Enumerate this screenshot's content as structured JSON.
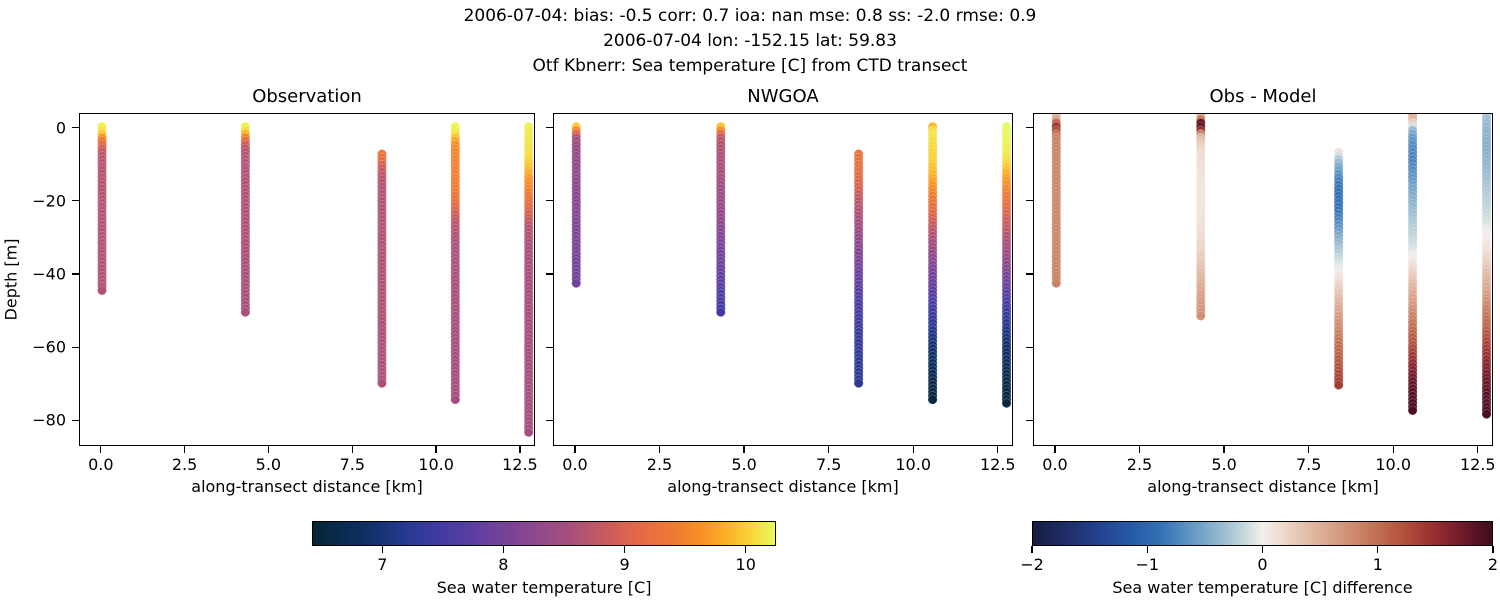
{
  "figure": {
    "title_line1": "2006-07-04: bias: -0.5  corr: 0.7  ioa: nan  mse: 0.8  ss: -2.0  rmse: 0.9",
    "title_line2": "2006-07-04 lon: -152.15 lat: 59.83",
    "title_line3": "Otf Kbnerr: Sea temperature [C] from CTD transect"
  },
  "chart_data": {
    "type": "scatter",
    "description": "Three vertical-profile scatter panels of sea temperature vs depth along a CTD transect; color encodes temperature (panels 1-2) or obs-model difference (panel 3). Profiles are piecewise-linear [depth_m, value] pairs.",
    "panels": [
      {
        "title": "Observation",
        "xlabel": "along-transect distance [km]",
        "ylabel": "Depth [m]",
        "xlim": [
          -0.65,
          12.95
        ],
        "ylim": [
          4,
          -87
        ],
        "xticks": [
          0,
          2.5,
          5,
          7.5,
          10,
          12.5
        ],
        "xticklabels": [
          "0.0",
          "2.5",
          "5.0",
          "7.5",
          "10.0",
          "12.5"
        ],
        "yticks": [
          0,
          -20,
          -40,
          -60,
          -80
        ],
        "yticklabels": [
          "0",
          "−20",
          "−40",
          "−60",
          "−80"
        ],
        "show_yticklabels": true,
        "colormap": "thermal",
        "vmin": 6.42,
        "vmax": 10.25,
        "columns": [
          {
            "x": 0.0,
            "profile": [
              [
                0.5,
                10.2
              ],
              [
                -1,
                10.1
              ],
              [
                -2,
                9.9
              ],
              [
                -3,
                9.5
              ],
              [
                -4,
                9.25
              ],
              [
                -5,
                9.05
              ],
              [
                -6,
                8.85
              ],
              [
                -8,
                8.7
              ],
              [
                -45,
                8.62
              ]
            ]
          },
          {
            "x": 4.3,
            "profile": [
              [
                0.5,
                10.2
              ],
              [
                -1,
                10.05
              ],
              [
                -2,
                9.75
              ],
              [
                -3,
                9.3
              ],
              [
                -4,
                9.0
              ],
              [
                -5,
                8.8
              ],
              [
                -7,
                8.68
              ],
              [
                -51,
                8.55
              ]
            ]
          },
          {
            "x": 8.4,
            "profile": [
              [
                -7,
                9.35
              ],
              [
                -9,
                9.15
              ],
              [
                -11,
                8.9
              ],
              [
                -13,
                8.75
              ],
              [
                -16,
                8.65
              ],
              [
                -70,
                8.6
              ]
            ]
          },
          {
            "x": 10.6,
            "profile": [
              [
                0.5,
                10.25
              ],
              [
                -2,
                10.1
              ],
              [
                -3,
                9.85
              ],
              [
                -5,
                9.6
              ],
              [
                -8,
                9.5
              ],
              [
                -16,
                9.45
              ],
              [
                -20,
                9.25
              ],
              [
                -23,
                9.0
              ],
              [
                -26,
                8.75
              ],
              [
                -31,
                8.6
              ],
              [
                -75,
                8.5
              ]
            ]
          },
          {
            "x": 12.8,
            "profile": [
              [
                0.5,
                10.2
              ],
              [
                -8,
                10.1
              ],
              [
                -11,
                9.95
              ],
              [
                -14,
                9.7
              ],
              [
                -18,
                9.45
              ],
              [
                -21,
                9.2
              ],
              [
                -24,
                8.95
              ],
              [
                -27,
                8.7
              ],
              [
                -33,
                8.55
              ],
              [
                -84,
                8.5
              ]
            ]
          }
        ]
      },
      {
        "title": "NWGOA",
        "xlabel": "along-transect distance [km]",
        "ylabel": "",
        "xlim": [
          -0.65,
          12.95
        ],
        "ylim": [
          4,
          -87
        ],
        "xticks": [
          0,
          2.5,
          5,
          7.5,
          10,
          12.5
        ],
        "xticklabels": [
          "0.0",
          "2.5",
          "5.0",
          "7.5",
          "10.0",
          "12.5"
        ],
        "yticks": [
          0,
          -20,
          -40,
          -60,
          -80
        ],
        "yticklabels": [
          "0",
          "−20",
          "−40",
          "−60",
          "−80"
        ],
        "show_yticklabels": false,
        "colormap": "thermal",
        "vmin": 6.42,
        "vmax": 10.25,
        "columns": [
          {
            "x": 0.0,
            "profile": [
              [
                0.5,
                10.0
              ],
              [
                -1,
                9.4
              ],
              [
                -2,
                8.8
              ],
              [
                -3,
                8.5
              ],
              [
                -6,
                8.35
              ],
              [
                -15,
                8.25
              ],
              [
                -30,
                8.1
              ],
              [
                -43,
                7.95
              ]
            ]
          },
          {
            "x": 4.3,
            "profile": [
              [
                0.5,
                9.95
              ],
              [
                -1,
                9.5
              ],
              [
                -2,
                8.85
              ],
              [
                -4,
                8.65
              ],
              [
                -15,
                8.5
              ],
              [
                -25,
                8.3
              ],
              [
                -33,
                8.05
              ],
              [
                -40,
                7.85
              ],
              [
                -46,
                7.65
              ],
              [
                -51,
                7.45
              ]
            ]
          },
          {
            "x": 8.4,
            "profile": [
              [
                -7,
                9.3
              ],
              [
                -13,
                9.15
              ],
              [
                -17,
                8.95
              ],
              [
                -21,
                8.7
              ],
              [
                -26,
                8.5
              ],
              [
                -31,
                8.3
              ],
              [
                -37,
                8.05
              ],
              [
                -43,
                7.8
              ],
              [
                -50,
                7.55
              ],
              [
                -58,
                7.35
              ],
              [
                -65,
                7.25
              ],
              [
                -70,
                7.2
              ]
            ]
          },
          {
            "x": 10.6,
            "profile": [
              [
                0.5,
                9.9
              ],
              [
                -1,
                10.15
              ],
              [
                -10,
                10.0
              ],
              [
                -14,
                9.8
              ],
              [
                -18,
                9.5
              ],
              [
                -22,
                9.2
              ],
              [
                -26,
                8.9
              ],
              [
                -31,
                8.55
              ],
              [
                -36,
                8.25
              ],
              [
                -42,
                7.95
              ],
              [
                -48,
                7.6
              ],
              [
                -54,
                7.25
              ],
              [
                -60,
                6.95
              ],
              [
                -66,
                6.75
              ],
              [
                -71,
                6.6
              ],
              [
                -75,
                6.5
              ]
            ]
          },
          {
            "x": 12.8,
            "profile": [
              [
                0.5,
                10.3
              ],
              [
                -8,
                10.15
              ],
              [
                -12,
                9.9
              ],
              [
                -16,
                9.6
              ],
              [
                -20,
                9.3
              ],
              [
                -25,
                8.95
              ],
              [
                -30,
                8.65
              ],
              [
                -36,
                8.35
              ],
              [
                -42,
                8.0
              ],
              [
                -48,
                7.6
              ],
              [
                -54,
                7.2
              ],
              [
                -60,
                6.9
              ],
              [
                -67,
                6.7
              ],
              [
                -76,
                6.5
              ]
            ]
          }
        ]
      },
      {
        "title": "Obs - Model",
        "xlabel": "along-transect distance [km]",
        "ylabel": "",
        "xlim": [
          -0.65,
          12.95
        ],
        "ylim": [
          4,
          -87
        ],
        "xticks": [
          0,
          2.5,
          5,
          7.5,
          10,
          12.5
        ],
        "xticklabels": [
          "0.0",
          "2.5",
          "5.0",
          "7.5",
          "10.0",
          "12.5"
        ],
        "yticks": [
          0,
          -20,
          -40,
          -60,
          -80
        ],
        "yticklabels": [
          "0",
          "−20",
          "−40",
          "−60",
          "−80"
        ],
        "show_yticklabels": false,
        "colormap": "balance",
        "vmin": -2,
        "vmax": 2,
        "columns": [
          {
            "x": 0.0,
            "profile": [
              [
                3.5,
                0.4
              ],
              [
                2,
                0.7
              ],
              [
                1,
                1.4
              ],
              [
                0,
                1.5
              ],
              [
                -1,
                1.1
              ],
              [
                -2,
                0.85
              ],
              [
                -20,
                0.8
              ],
              [
                -43,
                0.85
              ]
            ]
          },
          {
            "x": 4.3,
            "profile": [
              [
                3.5,
                0.5
              ],
              [
                2.5,
                0.9
              ],
              [
                1.5,
                1.8
              ],
              [
                0,
                1.85
              ],
              [
                -1,
                1.2
              ],
              [
                -2,
                0.5
              ],
              [
                -4,
                0.3
              ],
              [
                -7,
                0.15
              ],
              [
                -15,
                0.1
              ],
              [
                -25,
                0.1
              ],
              [
                -33,
                0.2
              ],
              [
                -40,
                0.4
              ],
              [
                -46,
                0.6
              ],
              [
                -52,
                0.75
              ]
            ]
          },
          {
            "x": 8.4,
            "profile": [
              [
                -6.5,
                0.1
              ],
              [
                -8,
                -0.2
              ],
              [
                -11,
                -0.5
              ],
              [
                -14,
                -0.75
              ],
              [
                -18,
                -0.9
              ],
              [
                -23,
                -0.85
              ],
              [
                -27,
                -0.65
              ],
              [
                -31,
                -0.4
              ],
              [
                -35,
                -0.2
              ],
              [
                -39,
                0.0
              ],
              [
                -44,
                0.25
              ],
              [
                -49,
                0.5
              ],
              [
                -54,
                0.75
              ],
              [
                -59,
                0.95
              ],
              [
                -64,
                1.15
              ],
              [
                -68,
                1.3
              ],
              [
                -71,
                1.4
              ]
            ]
          },
          {
            "x": 10.6,
            "profile": [
              [
                3.5,
                0.5
              ],
              [
                2,
                0.45
              ],
              [
                1,
                0.1
              ],
              [
                0,
                -0.3
              ],
              [
                -2,
                -0.55
              ],
              [
                -5,
                -0.7
              ],
              [
                -9,
                -0.75
              ],
              [
                -13,
                -0.65
              ],
              [
                -17,
                -0.5
              ],
              [
                -21,
                -0.4
              ],
              [
                -25,
                -0.3
              ],
              [
                -29,
                -0.2
              ],
              [
                -33,
                -0.1
              ],
              [
                -36,
                0.05
              ],
              [
                -40,
                0.25
              ],
              [
                -44,
                0.45
              ],
              [
                -48,
                0.65
              ],
              [
                -52,
                0.85
              ],
              [
                -56,
                1.05
              ],
              [
                -60,
                1.25
              ],
              [
                -64,
                1.5
              ],
              [
                -68,
                1.7
              ],
              [
                -72,
                1.85
              ],
              [
                -78,
                1.95
              ]
            ]
          },
          {
            "x": 12.8,
            "profile": [
              [
                3.5,
                -0.3
              ],
              [
                0,
                -0.4
              ],
              [
                -5,
                -0.45
              ],
              [
                -10,
                -0.4
              ],
              [
                -15,
                -0.3
              ],
              [
                -20,
                -0.22
              ],
              [
                -25,
                -0.12
              ],
              [
                -29,
                0.0
              ],
              [
                -33,
                0.1
              ],
              [
                -37,
                0.25
              ],
              [
                -41,
                0.45
              ],
              [
                -45,
                0.6
              ],
              [
                -49,
                0.8
              ],
              [
                -53,
                1.0
              ],
              [
                -57,
                1.2
              ],
              [
                -61,
                1.4
              ],
              [
                -65,
                1.6
              ],
              [
                -69,
                1.75
              ],
              [
                -73,
                1.85
              ],
              [
                -79,
                1.95
              ]
            ]
          }
        ]
      }
    ],
    "colorbars": [
      {
        "colormap": "thermal",
        "vmin": 6.42,
        "vmax": 10.25,
        "ticks": [
          7,
          8,
          9,
          10
        ],
        "ticklabels": [
          "7",
          "8",
          "9",
          "10"
        ],
        "label": "Sea water temperature [C]"
      },
      {
        "colormap": "balance",
        "vmin": -2,
        "vmax": 2,
        "ticks": [
          -2,
          -1,
          0,
          1,
          2
        ],
        "ticklabels": [
          "−2",
          "−1",
          "0",
          "1",
          "2"
        ],
        "label": "Sea water temperature [C] difference"
      }
    ]
  }
}
